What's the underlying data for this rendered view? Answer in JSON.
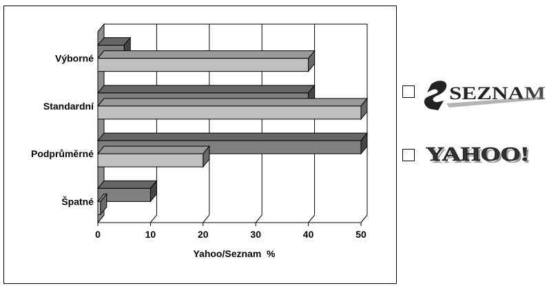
{
  "chart_data": {
    "type": "bar",
    "orientation": "horizontal",
    "style": "3d",
    "categories": [
      "Výborné",
      "Standardní",
      "Podprůměrné",
      "Špatné"
    ],
    "series": [
      {
        "name": "SEZNAM",
        "color": "#808080",
        "values": [
          5,
          40,
          50,
          10
        ]
      },
      {
        "name": "YAHOO!",
        "color": "#c0c0c0",
        "values": [
          40,
          50,
          20,
          0.5
        ]
      }
    ],
    "xticks": [
      "0",
      "10",
      "20",
      "30",
      "40",
      "50"
    ],
    "xlabel": "Yahoo/Seznam  %",
    "xlim": [
      0,
      50
    ],
    "grid": true,
    "legend": "right"
  }
}
